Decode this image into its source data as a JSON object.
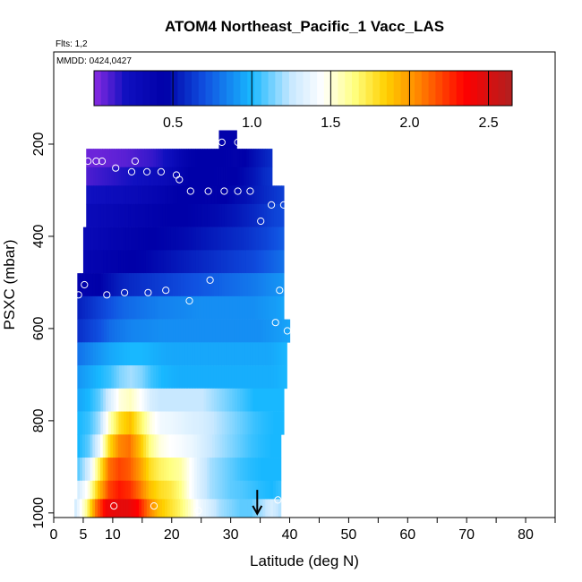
{
  "chart_data": {
    "type": "heatmap",
    "title": "ATOM4 Northeast_Pacific_1 Vacc_LAS",
    "flights_label": "Flts: 1,2",
    "dates_label": "MMDD: 0424,0427",
    "xlabel": "Latitude (deg N)",
    "ylabel": "PSXC (mbar)",
    "xlim": [
      0,
      85
    ],
    "ylim": [
      1010,
      0
    ],
    "x_ticks": [
      0,
      5,
      10,
      20,
      30,
      40,
      50,
      60,
      70,
      80
    ],
    "y_ticks": [
      200,
      400,
      600,
      800,
      1000
    ],
    "colorbar": {
      "range": [
        0,
        2.65
      ],
      "ticks": [
        0.5,
        1.0,
        1.5,
        2.0,
        2.5
      ],
      "tick_labels": [
        "0.5",
        "1.0",
        "1.5",
        "2.0",
        "2.5"
      ],
      "color_stops": [
        {
          "v": 0.0,
          "c": "#8b2be2"
        },
        {
          "v": 0.2,
          "c": "#1010c0"
        },
        {
          "v": 0.45,
          "c": "#0000a8"
        },
        {
          "v": 0.7,
          "c": "#1050e0"
        },
        {
          "v": 1.0,
          "c": "#18b8ff"
        },
        {
          "v": 1.25,
          "c": "#c8e8ff"
        },
        {
          "v": 1.45,
          "c": "#ffffff"
        },
        {
          "v": 1.65,
          "c": "#ffff80"
        },
        {
          "v": 1.85,
          "c": "#ffd000"
        },
        {
          "v": 2.05,
          "c": "#ff8800"
        },
        {
          "v": 2.35,
          "c": "#ff0000"
        },
        {
          "v": 2.65,
          "c": "#b02020"
        }
      ]
    },
    "layers": [
      {
        "p_top": 170,
        "p_bot": 210,
        "lat_start": 28,
        "lat_end": 31,
        "v": [
          0.42
        ]
      },
      {
        "p_top": 210,
        "p_bot": 250,
        "lat_start": 5.5,
        "lat_end": 37,
        "v": [
          0.05,
          0.05,
          0.06,
          0.07,
          0.08,
          0.1,
          0.12,
          0.14,
          0.18,
          0.25,
          0.35,
          0.42,
          0.45,
          0.45,
          0.45,
          0.44,
          0.42,
          0.45,
          0.5,
          0.55,
          0.6
        ]
      },
      {
        "p_top": 250,
        "p_bot": 290,
        "lat_start": 5.5,
        "lat_end": 37,
        "v": [
          0.1,
          0.12,
          0.14,
          0.16,
          0.18,
          0.2,
          0.22,
          0.25,
          0.28,
          0.32,
          0.38,
          0.45,
          0.45,
          0.45,
          0.44,
          0.44,
          0.45,
          0.48,
          0.52,
          0.58,
          0.62
        ]
      },
      {
        "p_top": 290,
        "p_bot": 330,
        "lat_start": 5.5,
        "lat_end": 39,
        "v": [
          0.2,
          0.22,
          0.24,
          0.26,
          0.28,
          0.3,
          0.33,
          0.36,
          0.4,
          0.44,
          0.45,
          0.45,
          0.44,
          0.44,
          0.45,
          0.48,
          0.5,
          0.54,
          0.58,
          0.62,
          0.65
        ]
      },
      {
        "p_top": 330,
        "p_bot": 380,
        "lat_start": 5.5,
        "lat_end": 39,
        "v": [
          0.28,
          0.3,
          0.32,
          0.34,
          0.36,
          0.38,
          0.4,
          0.42,
          0.44,
          0.45,
          0.45,
          0.46,
          0.47,
          0.48,
          0.5,
          0.52,
          0.55,
          0.58,
          0.62,
          0.66,
          0.68
        ]
      },
      {
        "p_top": 380,
        "p_bot": 430,
        "lat_start": 5,
        "lat_end": 39,
        "v": [
          0.3,
          0.32,
          0.35,
          0.38,
          0.4,
          0.42,
          0.44,
          0.45,
          0.46,
          0.47,
          0.48,
          0.5,
          0.52,
          0.54,
          0.56,
          0.58,
          0.6,
          0.63,
          0.66,
          0.7,
          0.74
        ]
      },
      {
        "p_top": 430,
        "p_bot": 480,
        "lat_start": 5,
        "lat_end": 39,
        "v": [
          0.35,
          0.38,
          0.4,
          0.42,
          0.44,
          0.45,
          0.46,
          0.48,
          0.5,
          0.52,
          0.54,
          0.56,
          0.58,
          0.6,
          0.62,
          0.64,
          0.66,
          0.68,
          0.72,
          0.76,
          0.8
        ]
      },
      {
        "p_top": 480,
        "p_bot": 530,
        "lat_start": 4,
        "lat_end": 39,
        "v": [
          0.4,
          0.42,
          0.45,
          0.5,
          0.55,
          0.58,
          0.6,
          0.62,
          0.64,
          0.66,
          0.68,
          0.7,
          0.72,
          0.74,
          0.76,
          0.78,
          0.8,
          0.82,
          0.85,
          0.88,
          0.9
        ]
      },
      {
        "p_top": 530,
        "p_bot": 580,
        "lat_start": 4,
        "lat_end": 39,
        "v": [
          0.55,
          0.6,
          0.65,
          0.7,
          0.75,
          0.78,
          0.8,
          0.82,
          0.84,
          0.85,
          0.86,
          0.87,
          0.88,
          0.88,
          0.88,
          0.88,
          0.88,
          0.88,
          0.9,
          0.92,
          0.95
        ]
      },
      {
        "p_top": 580,
        "p_bot": 630,
        "lat_start": 4,
        "lat_end": 40,
        "v": [
          0.6,
          0.65,
          0.7,
          0.78,
          0.82,
          0.85,
          0.86,
          0.87,
          0.88,
          0.88,
          0.88,
          0.88,
          0.88,
          0.88,
          0.88,
          0.88,
          0.88,
          0.88,
          0.9,
          0.92,
          0.95
        ]
      },
      {
        "p_top": 630,
        "p_bot": 680,
        "lat_start": 4,
        "lat_end": 39.5,
        "v": [
          0.8,
          0.85,
          0.9,
          0.95,
          0.98,
          1.0,
          1.0,
          0.98,
          0.96,
          0.95,
          0.95,
          0.95,
          0.95,
          0.95,
          0.95,
          0.95,
          0.95,
          0.95,
          0.95,
          0.97,
          1.0
        ]
      },
      {
        "p_top": 680,
        "p_bot": 730,
        "lat_start": 4,
        "lat_end": 39.5,
        "v": [
          0.9,
          0.95,
          1.0,
          1.05,
          1.15,
          1.2,
          1.15,
          1.05,
          1.0,
          0.98,
          0.97,
          0.97,
          0.97,
          0.97,
          0.97,
          0.97,
          0.97,
          0.97,
          0.97,
          0.98,
          1.0
        ]
      },
      {
        "p_top": 730,
        "p_bot": 780,
        "lat_start": 4,
        "lat_end": 39,
        "v": [
          0.95,
          1.0,
          1.1,
          1.3,
          1.5,
          1.55,
          1.45,
          1.3,
          1.25,
          1.25,
          1.25,
          1.25,
          1.25,
          1.2,
          1.15,
          1.1,
          1.05,
          1.0,
          1.0,
          1.0,
          1.0
        ]
      },
      {
        "p_top": 780,
        "p_bot": 830,
        "lat_start": 4,
        "lat_end": 39,
        "v": [
          1.0,
          1.05,
          1.2,
          1.55,
          1.8,
          1.9,
          1.7,
          1.5,
          1.4,
          1.38,
          1.35,
          1.32,
          1.3,
          1.25,
          1.2,
          1.15,
          1.1,
          1.05,
          1.02,
          1.0,
          1.0
        ]
      },
      {
        "p_top": 830,
        "p_bot": 880,
        "lat_start": 4,
        "lat_end": 38.5,
        "v": [
          1.0,
          1.1,
          1.35,
          1.8,
          2.05,
          2.1,
          1.9,
          1.65,
          1.5,
          1.45,
          1.42,
          1.38,
          1.32,
          1.25,
          1.2,
          1.15,
          1.1,
          1.05,
          1.02,
          1.0,
          1.0
        ]
      },
      {
        "p_top": 880,
        "p_bot": 930,
        "lat_start": 4,
        "lat_end": 38.5,
        "v": [
          1.1,
          1.3,
          1.7,
          2.1,
          2.2,
          2.15,
          2.0,
          1.8,
          1.7,
          1.65,
          1.6,
          1.45,
          1.3,
          1.2,
          1.15,
          1.1,
          1.05,
          1.02,
          1.0,
          1.0,
          1.0
        ]
      },
      {
        "p_top": 930,
        "p_bot": 970,
        "lat_start": 4,
        "lat_end": 38.5,
        "v": [
          1.3,
          1.5,
          1.9,
          2.2,
          2.3,
          2.25,
          2.1,
          1.9,
          1.8,
          1.75,
          1.65,
          1.45,
          1.3,
          1.2,
          1.15,
          1.1,
          1.08,
          1.05,
          1.02,
          1.0,
          1.05
        ]
      },
      {
        "p_top": 970,
        "p_bot": 1010,
        "lat_start": 3.5,
        "lat_end": 38.5,
        "v": [
          1.3,
          1.6,
          2.1,
          2.4,
          2.45,
          2.45,
          2.35,
          2.1,
          1.9,
          1.8,
          1.7,
          1.55,
          1.4,
          1.3,
          1.2,
          1.15,
          1.1,
          1.1,
          1.2,
          1.3,
          1.2
        ]
      }
    ],
    "points": [
      {
        "x": 5.8,
        "y": 237
      },
      {
        "x": 7.2,
        "y": 237
      },
      {
        "x": 8.2,
        "y": 237
      },
      {
        "x": 10.5,
        "y": 252
      },
      {
        "x": 13.8,
        "y": 237
      },
      {
        "x": 13.2,
        "y": 260
      },
      {
        "x": 15.8,
        "y": 260
      },
      {
        "x": 18.2,
        "y": 260
      },
      {
        "x": 20.8,
        "y": 267
      },
      {
        "x": 21.3,
        "y": 277
      },
      {
        "x": 23.2,
        "y": 302
      },
      {
        "x": 26.2,
        "y": 302
      },
      {
        "x": 28.5,
        "y": 196
      },
      {
        "x": 31.2,
        "y": 196
      },
      {
        "x": 28.9,
        "y": 302
      },
      {
        "x": 31.2,
        "y": 302
      },
      {
        "x": 33.3,
        "y": 302
      },
      {
        "x": 35.1,
        "y": 367
      },
      {
        "x": 36.9,
        "y": 332
      },
      {
        "x": 39.0,
        "y": 332
      },
      {
        "x": 4.2,
        "y": 527
      },
      {
        "x": 5.2,
        "y": 505
      },
      {
        "x": 9.0,
        "y": 527
      },
      {
        "x": 12.0,
        "y": 522
      },
      {
        "x": 16.0,
        "y": 522
      },
      {
        "x": 19.0,
        "y": 517
      },
      {
        "x": 23.0,
        "y": 540
      },
      {
        "x": 26.5,
        "y": 495
      },
      {
        "x": 38.3,
        "y": 517
      },
      {
        "x": 37.6,
        "y": 587
      },
      {
        "x": 39.6,
        "y": 605
      },
      {
        "x": 10.2,
        "y": 985
      },
      {
        "x": 17.0,
        "y": 985
      },
      {
        "x": 24.5,
        "y": 995
      },
      {
        "x": 38.0,
        "y": 972
      }
    ],
    "arrow": {
      "x": 34.5,
      "y_from": 950,
      "y_to": 1000
    }
  }
}
